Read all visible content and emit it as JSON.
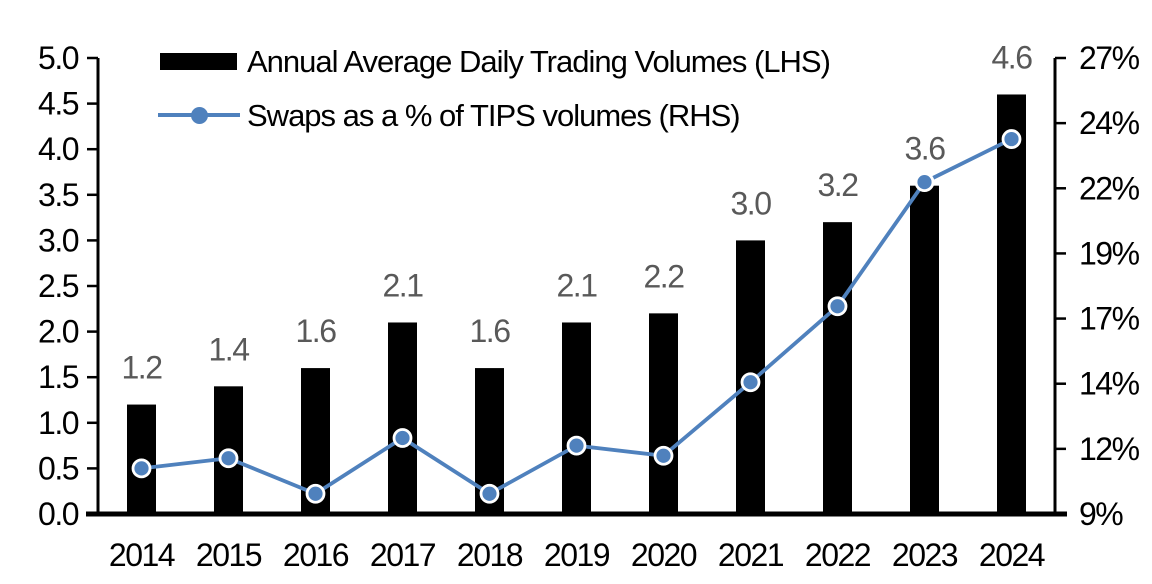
{
  "legend": {
    "items": [
      {
        "label": "Annual Average Daily Trading Volumes (LHS)",
        "swatch": "bar",
        "color": "#000000"
      },
      {
        "label": "Swaps as a % of TIPS volumes (RHS)",
        "swatch": "line-marker",
        "color": "#4F81BD"
      }
    ],
    "position": "top-left-inside"
  },
  "chart_data": {
    "type": "combo",
    "categories": [
      "2014",
      "2015",
      "2016",
      "2017",
      "2018",
      "2019",
      "2020",
      "2021",
      "2022",
      "2023",
      "2024"
    ],
    "series": [
      {
        "name": "Annual Average Daily Trading Volumes (LHS)",
        "type": "bar",
        "axis": "left",
        "color": "#000000",
        "values": [
          1.2,
          1.4,
          1.6,
          2.1,
          1.6,
          2.1,
          2.2,
          3.0,
          3.2,
          3.6,
          4.6
        ],
        "data_labels": [
          "1.2",
          "1.4",
          "1.6",
          "2.1",
          "1.6",
          "2.1",
          "2.2",
          "3.0",
          "3.2",
          "3.6",
          "4.6"
        ],
        "data_label_color": "#595959"
      },
      {
        "name": "Swaps as a % of TIPS volumes (RHS)",
        "type": "line",
        "axis": "right",
        "color": "#4F81BD",
        "marker": "circle",
        "marker_border": "#FFFFFF",
        "values": [
          10.8,
          11.2,
          9.8,
          12.0,
          9.8,
          11.7,
          11.3,
          14.2,
          17.2,
          22.1,
          23.8
        ]
      }
    ],
    "left_axis": {
      "min": 0.0,
      "max": 5.0,
      "tick_labels": [
        "5.0",
        "4.5",
        "4.0",
        "3.5",
        "3.0",
        "2.5",
        "2.0",
        "1.5",
        "1.0",
        "0.5",
        "0.0"
      ]
    },
    "right_axis": {
      "min": 9,
      "max": 27,
      "tick_labels": [
        "27%",
        "24%",
        "22%",
        "19%",
        "17%",
        "14%",
        "12%",
        "9%"
      ]
    },
    "grid": false,
    "axis_color": "#000000",
    "text_color": "#000000"
  }
}
